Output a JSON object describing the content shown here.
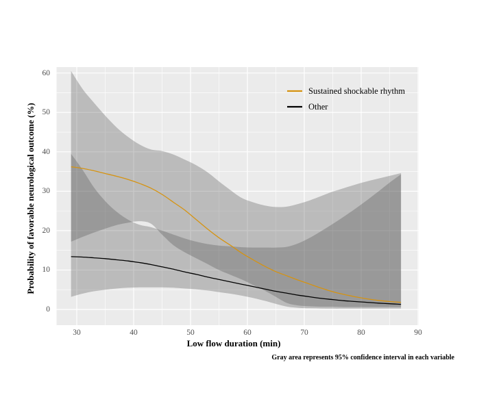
{
  "figure": {
    "y_axis_label": "Probability of favorable neurological outcome (%)",
    "x_axis_label": "Low flow duration (min)",
    "caption": "Gray area represents 95% confidence interval in each variable"
  },
  "chart_data": {
    "type": "line",
    "title": "",
    "xlabel": "Low flow duration (min)",
    "ylabel": "Probability of favorable neurological outcome (%)",
    "xlim": [
      26.5,
      90
    ],
    "ylim": [
      0,
      60
    ],
    "x_ticks": [
      30,
      40,
      50,
      60,
      70,
      80,
      90
    ],
    "y_ticks": [
      0,
      10,
      20,
      30,
      40,
      50,
      60
    ],
    "grid": "on",
    "panel_bg": "#EBEBEB",
    "grid_color": "#FFFFFF",
    "band_fill": "rgba(77,77,77,0.30)",
    "legend_position": "top-right-inside",
    "note": "Gray area represents 95% confidence interval in each variable",
    "x": [
      29,
      31,
      33,
      35,
      37,
      39,
      41,
      43,
      45,
      47,
      49,
      51,
      53,
      55,
      57,
      59,
      61,
      63,
      65,
      67,
      69,
      71,
      73,
      75,
      77,
      79,
      81,
      83,
      85,
      87
    ],
    "series": [
      {
        "name": "Sustained shockable rhythm",
        "color": "#D69310",
        "values": [
          36.2,
          35.8,
          35.2,
          34.5,
          33.8,
          33.0,
          32.0,
          30.8,
          29.2,
          27.2,
          25.2,
          22.8,
          20.4,
          18.2,
          16.3,
          14.3,
          12.6,
          11.0,
          9.6,
          8.5,
          7.4,
          6.4,
          5.4,
          4.5,
          3.8,
          3.2,
          2.7,
          2.3,
          2.0,
          1.8
        ],
        "ci_upper": [
          60.5,
          56.0,
          52.5,
          49.2,
          46.2,
          43.8,
          41.9,
          40.6,
          40.2,
          39.3,
          38.0,
          36.6,
          34.8,
          32.5,
          30.3,
          28.3,
          27.2,
          26.4,
          26.0,
          26.1,
          26.8,
          27.7,
          28.8,
          29.9,
          30.8,
          31.7,
          32.5,
          33.2,
          33.9,
          34.6
        ],
        "ci_lower": [
          17.2,
          18.4,
          19.5,
          20.5,
          21.4,
          22.0,
          22.4,
          21.8,
          19.0,
          16.3,
          14.5,
          13.0,
          11.5,
          10.0,
          8.8,
          7.6,
          6.2,
          4.8,
          3.2,
          1.6,
          1.0,
          0.8,
          0.7,
          0.7,
          0.6,
          0.6,
          0.6,
          0.6,
          0.6,
          0.6
        ]
      },
      {
        "name": "Other",
        "color": "#000000",
        "values": [
          13.4,
          13.3,
          13.1,
          12.9,
          12.6,
          12.3,
          11.9,
          11.4,
          10.8,
          10.2,
          9.5,
          8.9,
          8.2,
          7.6,
          7.0,
          6.4,
          5.8,
          5.2,
          4.6,
          4.1,
          3.6,
          3.2,
          2.8,
          2.5,
          2.2,
          2.0,
          1.8,
          1.6,
          1.45,
          1.3
        ],
        "ci_upper": [
          39.5,
          35.5,
          31.0,
          27.5,
          24.8,
          22.8,
          21.5,
          20.9,
          20.0,
          19.0,
          18.0,
          17.2,
          16.6,
          16.2,
          16.0,
          15.8,
          15.7,
          15.7,
          15.7,
          15.9,
          16.8,
          18.2,
          19.9,
          21.7,
          23.6,
          25.6,
          27.7,
          29.9,
          32.2,
          34.3
        ],
        "ci_lower": [
          3.2,
          4.0,
          4.6,
          5.0,
          5.3,
          5.5,
          5.6,
          5.6,
          5.6,
          5.5,
          5.3,
          5.1,
          4.8,
          4.4,
          4.0,
          3.5,
          2.9,
          2.2,
          1.4,
          0.7,
          0.4,
          0.3,
          0.25,
          0.2,
          0.2,
          0.2,
          0.2,
          0.2,
          0.2,
          0.2
        ]
      }
    ]
  }
}
